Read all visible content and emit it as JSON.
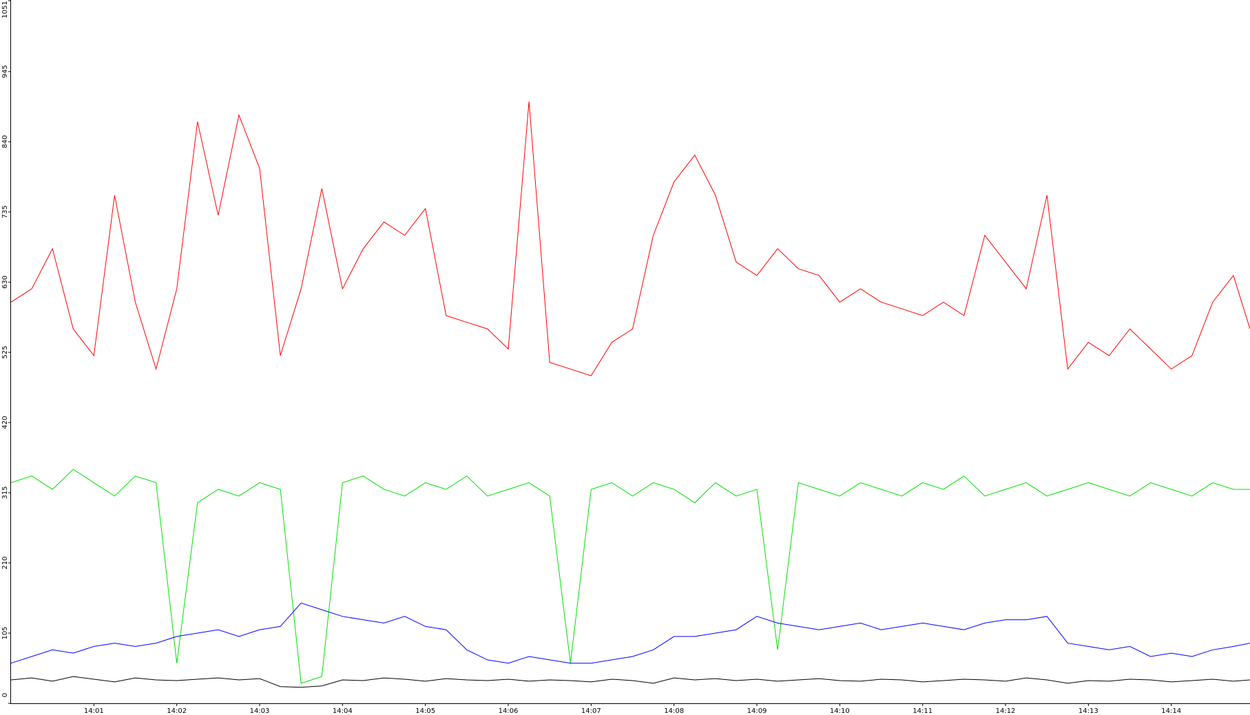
{
  "chart_data": {
    "type": "line",
    "x": [
      0,
      0.25,
      0.5,
      0.75,
      1,
      1.25,
      1.5,
      1.75,
      2,
      2.25,
      2.5,
      2.75,
      3,
      3.25,
      3.5,
      3.75,
      4,
      4.25,
      4.5,
      4.75,
      5,
      5.25,
      5.5,
      5.75,
      6,
      6.25,
      6.5,
      6.75,
      7,
      7.25,
      7.5,
      7.75,
      8,
      8.25,
      8.5,
      8.75,
      9,
      9.25,
      9.5,
      9.75,
      10,
      10.25,
      10.5,
      10.75,
      11,
      11.25,
      11.5,
      11.75,
      12,
      12.25,
      12.5,
      12.75,
      13,
      13.25,
      13.5,
      13.75,
      14,
      14.25,
      14.5,
      14.75,
      14.95
    ],
    "series": [
      {
        "name": "red",
        "color": "#ff0000",
        "values": [
          600,
          620,
          680,
          560,
          520,
          760,
          600,
          500,
          620,
          870,
          730,
          880,
          800,
          520,
          620,
          770,
          620,
          680,
          720,
          700,
          740,
          580,
          570,
          560,
          530,
          900,
          510,
          500,
          490,
          540,
          560,
          700,
          780,
          820,
          760,
          660,
          640,
          680,
          650,
          640,
          600,
          620,
          600,
          590,
          580,
          600,
          580,
          700,
          660,
          620,
          760,
          500,
          540,
          520,
          560,
          530,
          500,
          520,
          600,
          640,
          560
        ]
      },
      {
        "name": "green",
        "color": "#00e000",
        "values": [
          330,
          340,
          320,
          350,
          330,
          310,
          340,
          330,
          60,
          300,
          320,
          310,
          330,
          320,
          30,
          40,
          330,
          340,
          320,
          310,
          330,
          320,
          340,
          310,
          320,
          330,
          310,
          60,
          320,
          330,
          310,
          330,
          320,
          300,
          330,
          310,
          320,
          80,
          330,
          320,
          310,
          330,
          320,
          310,
          330,
          320,
          340,
          310,
          320,
          330,
          310,
          320,
          330,
          320,
          310,
          330,
          320,
          310,
          330,
          320,
          320
        ]
      },
      {
        "name": "blue",
        "color": "#0000ff",
        "values": [
          60,
          70,
          80,
          75,
          85,
          90,
          85,
          90,
          100,
          105,
          110,
          100,
          110,
          115,
          150,
          140,
          130,
          125,
          120,
          130,
          115,
          110,
          80,
          65,
          60,
          70,
          65,
          60,
          60,
          65,
          70,
          80,
          100,
          100,
          105,
          110,
          130,
          120,
          115,
          110,
          115,
          120,
          110,
          115,
          120,
          115,
          110,
          120,
          125,
          125,
          130,
          90,
          85,
          80,
          85,
          70,
          75,
          70,
          80,
          85,
          90
        ]
      },
      {
        "name": "black",
        "color": "#000000",
        "values": [
          35,
          38,
          33,
          40,
          36,
          32,
          38,
          35,
          34,
          36,
          38,
          35,
          37,
          25,
          24,
          26,
          35,
          34,
          38,
          36,
          33,
          37,
          35,
          34,
          36,
          33,
          35,
          34,
          32,
          36,
          34,
          30,
          38,
          35,
          37,
          34,
          36,
          33,
          35,
          37,
          34,
          33,
          36,
          35,
          32,
          34,
          36,
          35,
          33,
          38,
          35,
          30,
          34,
          33,
          36,
          35,
          32,
          34,
          36,
          33,
          35
        ]
      }
    ],
    "xlim": [
      0,
      14.95
    ],
    "xticks": [
      {
        "value": 1,
        "label": "14:01"
      },
      {
        "value": 2,
        "label": "14:02"
      },
      {
        "value": 3,
        "label": "14:03"
      },
      {
        "value": 4,
        "label": "14:04"
      },
      {
        "value": 5,
        "label": "14:05"
      },
      {
        "value": 6,
        "label": "14:06"
      },
      {
        "value": 7,
        "label": "14:07"
      },
      {
        "value": 8,
        "label": "14:08"
      },
      {
        "value": 9,
        "label": "14:09"
      },
      {
        "value": 10,
        "label": "14:10"
      },
      {
        "value": 11,
        "label": "14:11"
      },
      {
        "value": 12,
        "label": "14:12"
      },
      {
        "value": 13,
        "label": "14:13"
      },
      {
        "value": 14,
        "label": "14:14"
      }
    ],
    "ylim": [
      0,
      1051
    ],
    "yticks": [
      0,
      105,
      210,
      315,
      420,
      525,
      630,
      735,
      840,
      945,
      1051
    ]
  }
}
